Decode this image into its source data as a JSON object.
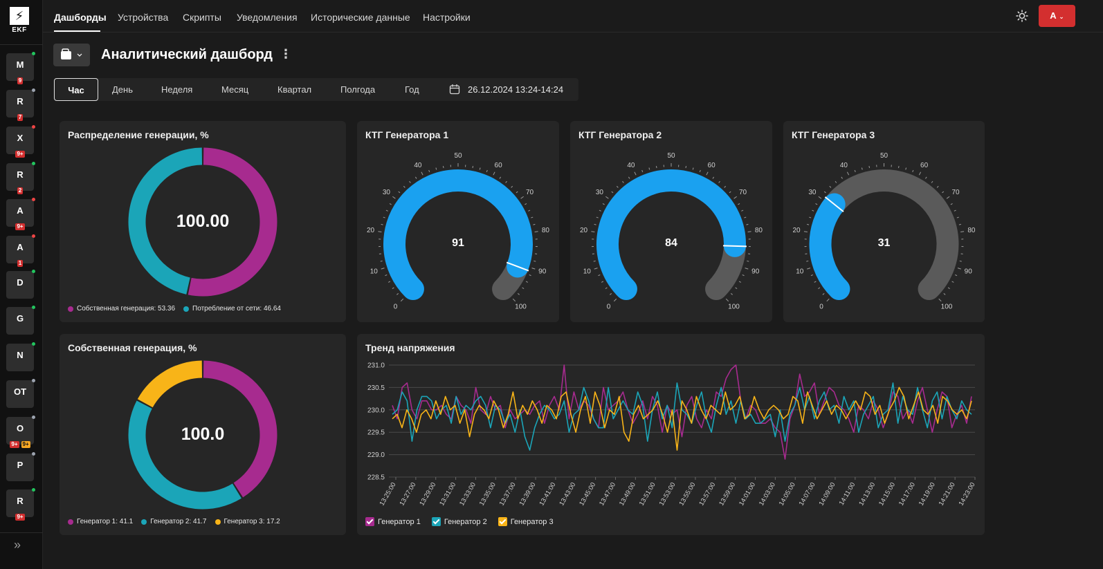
{
  "app": {
    "logo_text": "EKF"
  },
  "nav": {
    "items": [
      "Дашборды",
      "Устройства",
      "Скрипты",
      "Уведомления",
      "Исторические данные",
      "Настройки"
    ],
    "active": 0
  },
  "user": {
    "initial": "А"
  },
  "devices": [
    {
      "label": "M",
      "status": "green",
      "badges": [
        {
          "text": "9",
          "color": "red"
        }
      ]
    },
    {
      "label": "R",
      "status": "gray",
      "badges": [
        {
          "text": "7",
          "color": "red"
        }
      ]
    },
    {
      "label": "X",
      "status": "red",
      "badges": [
        {
          "text": "9+",
          "color": "red"
        }
      ]
    },
    {
      "label": "R",
      "status": "green",
      "badges": [
        {
          "text": "2",
          "color": "red"
        }
      ]
    },
    {
      "label": "A",
      "status": "red",
      "badges": [
        {
          "text": "9+",
          "color": "red"
        }
      ]
    },
    {
      "label": "A",
      "status": "red",
      "badges": [
        {
          "text": "1",
          "color": "red"
        }
      ]
    },
    {
      "label": "D",
      "status": "green",
      "badges": []
    },
    {
      "label": "G",
      "status": "green",
      "badges": []
    },
    {
      "label": "N",
      "status": "green",
      "badges": []
    },
    {
      "label": "OT",
      "status": "gray",
      "badges": []
    },
    {
      "label": "O",
      "status": "gray",
      "badges": [
        {
          "text": "9+",
          "color": "red"
        },
        {
          "text": "9+",
          "color": "orange"
        }
      ]
    },
    {
      "label": "P",
      "status": "gray",
      "badges": []
    },
    {
      "label": "R",
      "status": "green",
      "badges": [
        {
          "text": "9+",
          "color": "red"
        }
      ]
    }
  ],
  "dashboard": {
    "title": "Аналитический дашборд"
  },
  "periods": {
    "items": [
      "Час",
      "День",
      "Неделя",
      "Месяц",
      "Квартал",
      "Полгода",
      "Год"
    ],
    "active": 0,
    "date_range": "26.12.2024 13:24-14:24"
  },
  "colors": {
    "magenta": "#a72b8f",
    "teal": "#1ba5b8",
    "yellow": "#f8b418",
    "blue": "#1aa1f0",
    "gray": "#5a5a5a"
  },
  "cards": {
    "distribution": {
      "title": "Распределение генерации, %",
      "center": "100.00",
      "legend": [
        "Собственная генерация: 53.36",
        "Потребление от сети: 46.64"
      ]
    },
    "own_generation": {
      "title": "Собственная генерация, %",
      "center": "100.0",
      "legend": [
        "Генератор 1: 41.1",
        "Генератор 2: 41.7",
        "Генератор 3: 17.2"
      ]
    },
    "gauges": [
      {
        "title": "КТГ Генератора 1",
        "value": "91"
      },
      {
        "title": "КТГ Генератора 2",
        "value": "84"
      },
      {
        "title": "КТГ Генератора 3",
        "value": "31"
      }
    ],
    "trend": {
      "title": "Тренд напряжения"
    }
  },
  "chart_data": [
    {
      "type": "pie",
      "title": "Распределение генерации, %",
      "center_label": "100.00",
      "slices": [
        {
          "name": "Собственная генерация",
          "value": 53.36,
          "color": "#a72b8f"
        },
        {
          "name": "Потребление от сети",
          "value": 46.64,
          "color": "#1ba5b8"
        }
      ]
    },
    {
      "type": "pie",
      "title": "Собственная генерация, %",
      "center_label": "100.0",
      "slices": [
        {
          "name": "Генератор 1",
          "value": 41.1,
          "color": "#a72b8f"
        },
        {
          "name": "Генератор 2",
          "value": 41.7,
          "color": "#1ba5b8"
        },
        {
          "name": "Генератор 3",
          "value": 17.2,
          "color": "#f8b418"
        }
      ]
    },
    {
      "type": "gauge",
      "title": "КТГ Генератора 1",
      "value": 91,
      "min": 0,
      "max": 100,
      "ticks": [
        "0",
        "10",
        "20",
        "30",
        "40",
        "50",
        "60",
        "70",
        "80",
        "90",
        "100"
      ]
    },
    {
      "type": "gauge",
      "title": "КТГ Генератора 2",
      "value": 84,
      "min": 0,
      "max": 100,
      "ticks": [
        "0",
        "10",
        "20",
        "30",
        "40",
        "50",
        "60",
        "70",
        "80",
        "90",
        "100"
      ]
    },
    {
      "type": "gauge",
      "title": "КТГ Генератора 3",
      "value": 31,
      "min": 0,
      "max": 100,
      "ticks": [
        "0",
        "10",
        "20",
        "30",
        "40",
        "50",
        "60",
        "70",
        "80",
        "90",
        "100"
      ]
    },
    {
      "type": "line",
      "title": "Тренд напряжения",
      "ylim": [
        228.5,
        231.0
      ],
      "yticks": [
        "231.0",
        "230.5",
        "230.0",
        "229.5",
        "229.0",
        "228.5"
      ],
      "x_labels": [
        "13:25:00",
        "13:27:00",
        "13:29:00",
        "13:31:00",
        "13:33:00",
        "13:35:00",
        "13:37:00",
        "13:39:00",
        "13:41:00",
        "13:43:00",
        "13:45:00",
        "13:47:00",
        "13:49:00",
        "13:51:00",
        "13:53:00",
        "13:55:00",
        "13:57:00",
        "13:59:00",
        "14:01:00",
        "14:03:00",
        "14:05:00",
        "14:07:00",
        "14:09:00",
        "14:11:00",
        "14:13:00",
        "14:15:00",
        "14:17:00",
        "14:19:00",
        "14:21:00",
        "14:23:00"
      ],
      "grid": true,
      "legend": "bottom-left",
      "series": [
        {
          "name": "Генератор 1",
          "color": "#a72b8f",
          "values": [
            230.1,
            229.8,
            230.5,
            230.6,
            230.0,
            229.8,
            230.2,
            230.2,
            230.0,
            230.0,
            230.1,
            229.9,
            229.8,
            230.3,
            230.1,
            230.0,
            229.7,
            230.5,
            230.0,
            229.9,
            230.3,
            230.0,
            230.1,
            229.6,
            230.0,
            229.8,
            229.9,
            230.0,
            229.9,
            230.1,
            230.2,
            229.7,
            230.1,
            230.3,
            230.0,
            231.0,
            229.8,
            230.4,
            230.0,
            230.2,
            230.1,
            229.8,
            229.6,
            230.5,
            230.0,
            230.1,
            230.2,
            230.4,
            230.0,
            229.7,
            229.9,
            230.2,
            229.8,
            230.3,
            230.1,
            229.5,
            230.1,
            229.9,
            230.0,
            229.4,
            230.1,
            230.3,
            229.8,
            229.6,
            230.0,
            229.8,
            230.4,
            230.3,
            230.7,
            230.9,
            231.0,
            230.2,
            229.8,
            230.1,
            230.0,
            229.7,
            229.7,
            229.8,
            229.6,
            229.5,
            228.9,
            229.8,
            230.1,
            230.8,
            230.3,
            230.4,
            230.6,
            229.9,
            230.2,
            230.5,
            230.4,
            230.1,
            230.0,
            229.8,
            229.5,
            230.1,
            230.0,
            229.8,
            230.2,
            230.0,
            229.6,
            229.9,
            230.4,
            230.3,
            229.8,
            230.0,
            229.7,
            230.2,
            230.5,
            230.0,
            229.5,
            230.0,
            230.4,
            230.3,
            229.6,
            229.9,
            230.1,
            229.7,
            230.3
          ]
        },
        {
          "name": "Генератор 2",
          "color": "#1ba5b8",
          "values": [
            229.9,
            230.0,
            230.4,
            230.2,
            229.3,
            230.0,
            230.3,
            230.3,
            230.2,
            229.8,
            230.0,
            230.1,
            229.7,
            230.3,
            229.9,
            230.1,
            230.0,
            230.2,
            230.3,
            230.1,
            229.6,
            230.1,
            230.0,
            229.7,
            229.9,
            229.5,
            230.0,
            229.4,
            229.1,
            229.6,
            229.9,
            230.1,
            230.0,
            229.8,
            229.9,
            230.2,
            229.5,
            229.9,
            230.0,
            230.5,
            230.2,
            229.8,
            229.6,
            229.6,
            230.5,
            229.8,
            230.0,
            230.2,
            230.0,
            229.9,
            230.4,
            230.1,
            229.3,
            230.0,
            230.4,
            229.8,
            230.1,
            229.6,
            230.6,
            230.0,
            229.9,
            229.7,
            230.1,
            230.4,
            229.8,
            229.5,
            230.1,
            230.5,
            229.9,
            230.2,
            229.7,
            230.2,
            229.8,
            229.9,
            229.7,
            229.7,
            229.8,
            229.9,
            229.4,
            230.0,
            229.3,
            229.9,
            230.1,
            230.5,
            230.0,
            230.3,
            229.8,
            230.2,
            230.4,
            230.0,
            230.1,
            229.7,
            230.3,
            230.0,
            230.2,
            229.5,
            229.9,
            230.1,
            230.3,
            229.6,
            229.9,
            230.0,
            230.6,
            229.7,
            230.3,
            230.0,
            229.9,
            230.5,
            230.0,
            229.6,
            230.2,
            230.4,
            229.8,
            230.3,
            230.0,
            229.8,
            230.2,
            230.0,
            229.9
          ]
        },
        {
          "name": "Генератор 3",
          "color": "#f8b418",
          "values": [
            229.8,
            229.9,
            229.6,
            230.0,
            229.8,
            229.5,
            229.9,
            230.0,
            229.8,
            230.2,
            229.9,
            230.3,
            230.0,
            230.1,
            229.7,
            230.0,
            229.4,
            229.9,
            230.1,
            230.0,
            229.8,
            230.2,
            230.0,
            229.6,
            229.9,
            230.4,
            229.8,
            230.1,
            229.9,
            230.2,
            230.0,
            229.7,
            230.1,
            230.0,
            229.8,
            230.3,
            230.4,
            229.9,
            229.5,
            230.0,
            230.3,
            229.7,
            230.4,
            230.1,
            229.6,
            230.0,
            229.9,
            230.3,
            229.5,
            229.3,
            229.9,
            230.1,
            229.8,
            229.9,
            230.0,
            230.2,
            229.9,
            229.5,
            230.0,
            229.1,
            230.2,
            230.0,
            229.7,
            230.3,
            230.0,
            229.8,
            230.1,
            230.0,
            229.9,
            230.4,
            230.0,
            230.1,
            230.3,
            229.8,
            229.9,
            230.3,
            230.0,
            229.8,
            230.0,
            230.1,
            230.0,
            229.8,
            229.9,
            230.3,
            230.2,
            229.7,
            230.4,
            230.1,
            229.8,
            230.0,
            230.2,
            229.9,
            230.1,
            230.0,
            229.8,
            230.0,
            230.2,
            230.0,
            230.4,
            230.3,
            229.9,
            230.1,
            229.7,
            230.0,
            230.2,
            230.5,
            230.3,
            229.8,
            230.1,
            230.4,
            230.0,
            229.9,
            230.1,
            229.7,
            230.3,
            230.2,
            230.0,
            229.9,
            230.0,
            229.8,
            230.2
          ]
        }
      ]
    }
  ]
}
